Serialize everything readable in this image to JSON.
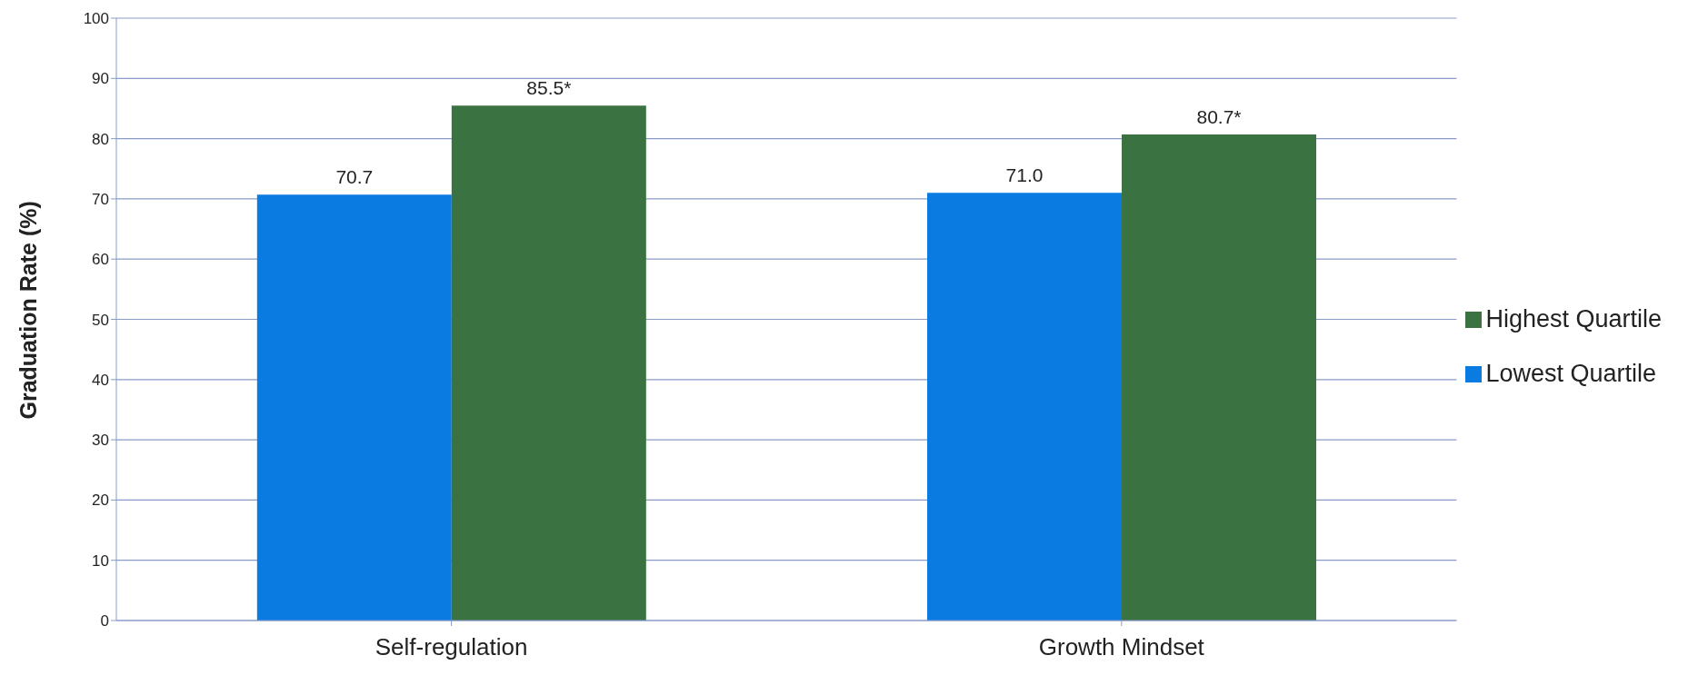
{
  "chart_data": {
    "type": "bar",
    "ylabel": "Graduation Rate (%)",
    "categories": [
      "Self-regulation",
      "Growth Mindset"
    ],
    "series": [
      {
        "name": "Lowest Quartile",
        "color": "#0a7be0",
        "values": [
          70.7,
          71.0
        ],
        "value_labels": [
          "70.7",
          "71.0"
        ]
      },
      {
        "name": "Highest Quartile",
        "color": "#3a7341",
        "values": [
          85.5,
          80.7
        ],
        "value_labels": [
          "85.5*",
          "80.7*"
        ]
      }
    ],
    "ylim": [
      0,
      100
    ],
    "yticks": [
      0,
      10,
      20,
      30,
      40,
      50,
      60,
      70,
      80,
      90,
      100
    ],
    "grid": "y",
    "legend": "right"
  }
}
